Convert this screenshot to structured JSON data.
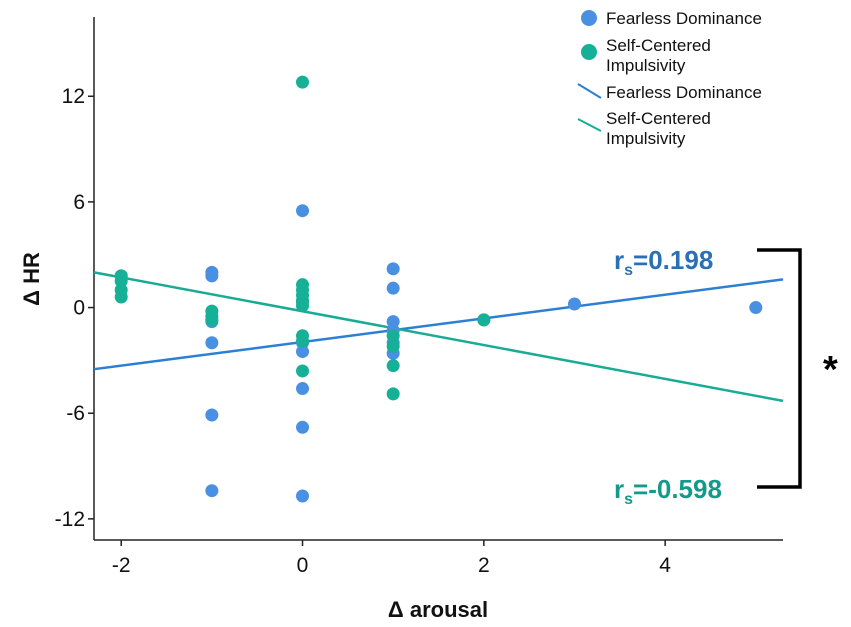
{
  "chart_data": {
    "type": "scatter",
    "xlabel": "Δ arousal",
    "ylabel": "Δ HR",
    "xlim": [
      -2.3,
      5.3
    ],
    "ylim": [
      -13.2,
      16.5
    ],
    "xticks": [
      -2,
      0,
      2,
      4
    ],
    "yticks": [
      12,
      6,
      0,
      -6,
      -12
    ],
    "xtick_labels": [
      "-2",
      "0",
      "2",
      "4"
    ],
    "ytick_labels": [
      "12",
      "6",
      "0",
      "-6",
      "-12"
    ],
    "grid": false,
    "legend_position": "top-right",
    "series": [
      {
        "name": "Fearless Dominance",
        "kind": "points",
        "color": "#4a90e2",
        "points": [
          [
            -2,
            1.8
          ],
          [
            -1,
            2.0
          ],
          [
            -1,
            1.8
          ],
          [
            -1,
            -0.8
          ],
          [
            -1,
            -2.0
          ],
          [
            -1,
            -6.1
          ],
          [
            -1,
            -10.4
          ],
          [
            0,
            5.5
          ],
          [
            0,
            0.3
          ],
          [
            0,
            -2.0
          ],
          [
            0,
            -2.5
          ],
          [
            0,
            -4.6
          ],
          [
            0,
            -6.8
          ],
          [
            0,
            -10.7
          ],
          [
            1,
            2.2
          ],
          [
            1,
            1.1
          ],
          [
            1,
            -0.8
          ],
          [
            1,
            -1.3
          ],
          [
            1,
            -2.0
          ],
          [
            1,
            -2.6
          ],
          [
            2,
            -0.7
          ],
          [
            3,
            0.2
          ],
          [
            5,
            0.0
          ]
        ]
      },
      {
        "name": "Self-Centered Impulsivity",
        "kind": "points",
        "color": "#16b096",
        "points": [
          [
            -2,
            1.8
          ],
          [
            -2,
            1.5
          ],
          [
            -2,
            1.0
          ],
          [
            -2,
            0.6
          ],
          [
            -1,
            -0.2
          ],
          [
            -1,
            -0.5
          ],
          [
            -1,
            -0.7
          ],
          [
            0,
            12.8
          ],
          [
            0,
            1.3
          ],
          [
            0,
            1.0
          ],
          [
            0,
            0.7
          ],
          [
            0,
            0.4
          ],
          [
            0,
            0.1
          ],
          [
            0,
            -1.6
          ],
          [
            0,
            -1.9
          ],
          [
            0,
            -3.6
          ],
          [
            1,
            -1.6
          ],
          [
            1,
            -2.2
          ],
          [
            1,
            -3.3
          ],
          [
            1,
            -4.9
          ],
          [
            2,
            -0.7
          ]
        ]
      },
      {
        "name": "Fearless Dominance",
        "kind": "fit_line",
        "color": "#2b7fd4",
        "endpoints": [
          [
            -2.3,
            -3.5
          ],
          [
            5.3,
            1.6
          ]
        ]
      },
      {
        "name": "Self-Centered Impulsivity",
        "kind": "fit_line",
        "color": "#1aab95",
        "endpoints": [
          [
            -2.3,
            2.0
          ],
          [
            5.3,
            -5.3
          ]
        ]
      }
    ],
    "annotations": [
      {
        "text_main": "r",
        "text_sub": "s",
        "text_value": "=0.198",
        "color": "#2b6fb5"
      },
      {
        "text_main": "r",
        "text_sub": "s",
        "text_value": "=-0.598",
        "color": "#149a8a"
      }
    ],
    "significance": "*"
  },
  "legend": {
    "items": [
      {
        "label_lines": [
          "Fearless Dominance"
        ]
      },
      {
        "label_lines": [
          "Self-Centered",
          "Impulsivity"
        ]
      },
      {
        "label_lines": [
          "Fearless Dominance"
        ]
      },
      {
        "label_lines": [
          "Self-Centered",
          "Impulsivity"
        ]
      }
    ]
  }
}
